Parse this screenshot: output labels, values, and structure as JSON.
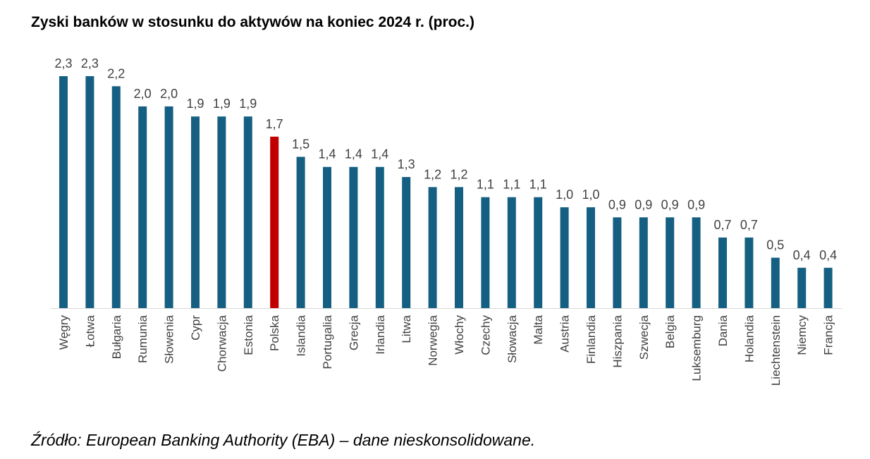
{
  "chart_data": {
    "type": "bar",
    "title": "Zyski banków w stosunku do aktywów na koniec 2024 r. (proc.)",
    "source": "Źródło: European Banking Authority (EBA) – dane nieskonsolidowane.",
    "categories": [
      "Węgry",
      "Łotwa",
      "Bułgaria",
      "Rumunia",
      "Słowenia",
      "Cypr",
      "Chorwacja",
      "Estonia",
      "Polska",
      "Islandia",
      "Portugalia",
      "Grecja",
      "Irlandia",
      "Litwa",
      "Norwegia",
      "Włochy",
      "Czechy",
      "Słowacja",
      "Malta",
      "Austria",
      "Finlandia",
      "Hiszpania",
      "Szwecja",
      "Belgia",
      "Luksemburg",
      "Dania",
      "Holandia",
      "Liechtenstein",
      "Niemcy",
      "Francja"
    ],
    "values": [
      2.3,
      2.3,
      2.2,
      2.0,
      2.0,
      1.9,
      1.9,
      1.9,
      1.7,
      1.5,
      1.4,
      1.4,
      1.4,
      1.3,
      1.2,
      1.2,
      1.1,
      1.1,
      1.1,
      1.0,
      1.0,
      0.9,
      0.9,
      0.9,
      0.9,
      0.7,
      0.7,
      0.5,
      0.4,
      0.4
    ],
    "data_labels": [
      "2,3",
      "2,3",
      "2,2",
      "2,0",
      "2,0",
      "1,9",
      "1,9",
      "1,9",
      "1,7",
      "1,5",
      "1,4",
      "1,4",
      "1,4",
      "1,3",
      "1,2",
      "1,2",
      "1,1",
      "1,1",
      "1,1",
      "1,0",
      "1,0",
      "0,9",
      "0,9",
      "0,9",
      "0,9",
      "0,7",
      "0,7",
      "0,5",
      "0,4",
      "0,4"
    ],
    "ylim": [
      0,
      2.3
    ],
    "grid": false,
    "colors": {
      "default": "#156082",
      "highlight": "#C00000"
    },
    "highlight_category": "Polska"
  }
}
